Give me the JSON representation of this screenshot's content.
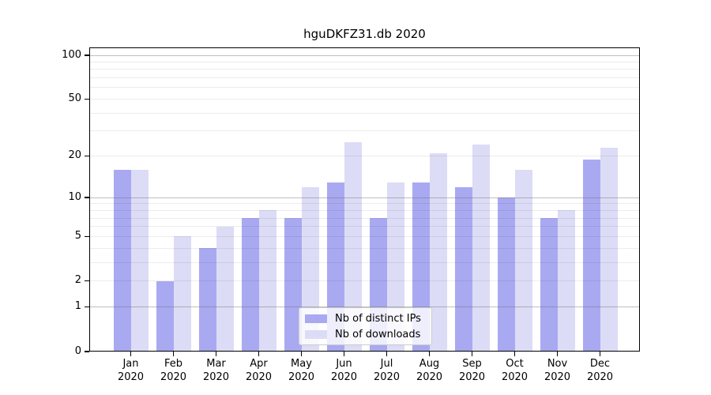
{
  "chart_data": {
    "type": "bar",
    "title": "hguDKFZ31.db 2020",
    "year": "2020",
    "categories": [
      "Jan",
      "Feb",
      "Mar",
      "Apr",
      "May",
      "Jun",
      "Jul",
      "Aug",
      "Sep",
      "Oct",
      "Nov",
      "Dec"
    ],
    "series": [
      {
        "key": "distinct-ips",
        "name": "Nb of distinct IPs",
        "color": "#a9a9f1",
        "values": [
          16,
          2,
          4,
          7,
          7,
          13,
          7,
          13,
          12,
          10,
          7,
          19
        ]
      },
      {
        "key": "downloads",
        "name": "Nb of downloads",
        "color": "#dcdcf6",
        "values": [
          16,
          5,
          6,
          8,
          12,
          25,
          13,
          21,
          24,
          16,
          8,
          23
        ]
      }
    ],
    "yscale": "log1p",
    "ylim": [
      0,
      113
    ],
    "yticks": {
      "values": [
        0,
        1,
        2,
        5,
        10,
        20,
        50,
        100
      ],
      "labels": [
        "0",
        "1",
        "2",
        "5",
        "10",
        "20",
        "50",
        "100"
      ]
    },
    "grid": {
      "minor": [
        2,
        3,
        4,
        5,
        6,
        7,
        8,
        9,
        20,
        30,
        40,
        50,
        60,
        70,
        80,
        90
      ],
      "major": [
        1,
        10,
        100
      ]
    },
    "legend": {
      "position": "lower center"
    },
    "xlabel": "",
    "ylabel": ""
  }
}
